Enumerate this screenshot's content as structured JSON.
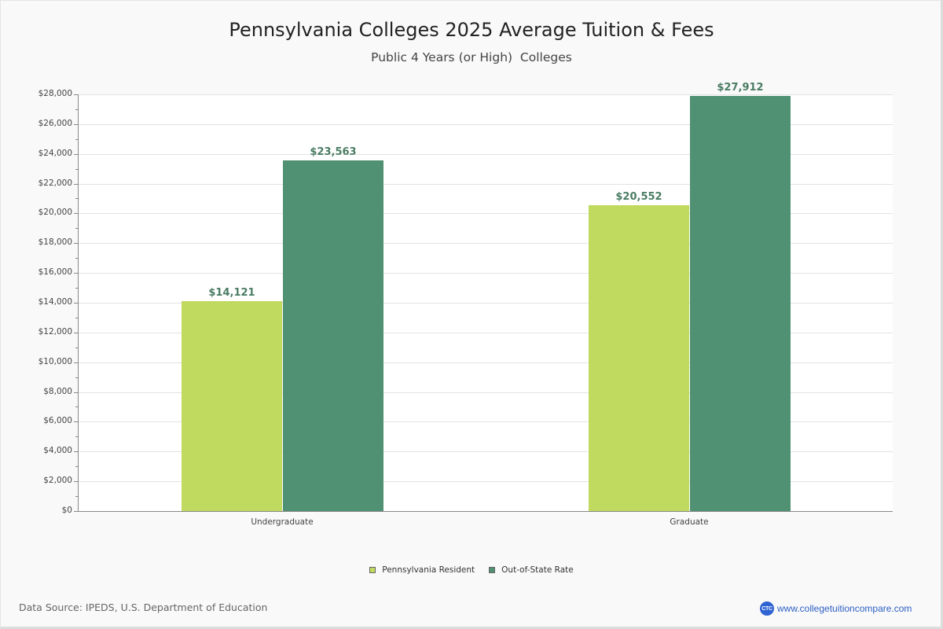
{
  "header": {
    "title": "Pennsylvania Colleges 2025 Average Tuition & Fees",
    "subtitle": "Public 4 Years (or High)  Colleges"
  },
  "colors": {
    "resident": "#c0da60",
    "out_of_state": "#519173",
    "bar_label": "#4a7c63",
    "brand": "#2f63d3"
  },
  "yaxis": {
    "ticks": [
      "$0",
      "$2,000",
      "$4,000",
      "$6,000",
      "$8,000",
      "$10,000",
      "$12,000",
      "$14,000",
      "$16,000",
      "$18,000",
      "$20,000",
      "$22,000",
      "$24,000",
      "$26,000",
      "$28,000"
    ]
  },
  "xaxis": {
    "categories": [
      "Undergraduate",
      "Graduate"
    ]
  },
  "bars": {
    "undergraduate": {
      "resident_label": "$14,121",
      "out_of_state_label": "$23,563"
    },
    "graduate": {
      "resident_label": "$20,552",
      "out_of_state_label": "$27,912"
    }
  },
  "legend": {
    "items": [
      "Pennsylvania Resident",
      "Out-of-State Rate"
    ]
  },
  "footer": {
    "source": "Data Source: IPEDS, U.S. Department of Education",
    "brand_logo": "CTC",
    "brand_url": "www.collegetuitioncompare.com"
  },
  "chart_data": {
    "type": "bar",
    "title": "Pennsylvania Colleges 2025 Average Tuition & Fees",
    "subtitle": "Public 4 Years (or High)  Colleges",
    "categories": [
      "Undergraduate",
      "Graduate"
    ],
    "series": [
      {
        "name": "Pennsylvania Resident",
        "values": [
          14121,
          20552
        ],
        "color": "#c0da60"
      },
      {
        "name": "Out-of-State Rate",
        "values": [
          23563,
          27912
        ],
        "color": "#519173"
      }
    ],
    "xlabel": "",
    "ylabel": "",
    "ylim": [
      0,
      28000
    ],
    "ytick_step": 2000,
    "grid": true,
    "legend_position": "bottom",
    "data_labels": true
  }
}
